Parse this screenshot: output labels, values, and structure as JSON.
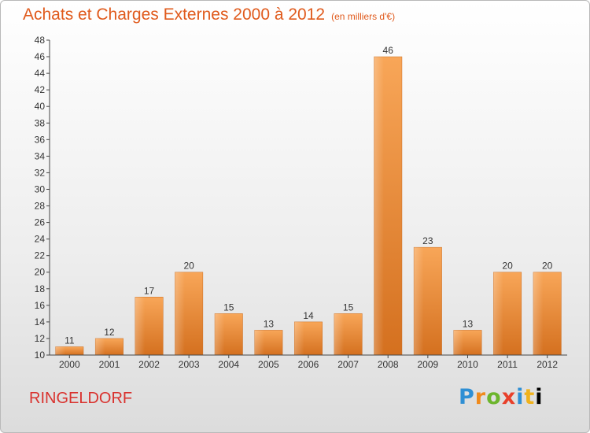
{
  "header": {
    "title": "Achats et Charges Externes 2000 à 2012",
    "subtitle": "(en milliers d'€)"
  },
  "footer": {
    "commune": "RINGELDORF",
    "logo_letters": [
      "P",
      "r",
      "o",
      "x",
      "i",
      "t",
      "i"
    ]
  },
  "colors": {
    "title": "#e05a1c",
    "bar_light": "#f8a658",
    "bar_dark": "#d4701f",
    "commune": "#d9322e"
  },
  "chart_data": {
    "type": "bar",
    "title": "Achats et Charges Externes 2000 à 2012",
    "subtitle": "(en milliers d'€)",
    "categories": [
      "2000",
      "2001",
      "2002",
      "2003",
      "2004",
      "2005",
      "2006",
      "2007",
      "2008",
      "2009",
      "2010",
      "2011",
      "2012"
    ],
    "values": [
      11,
      12,
      17,
      20,
      15,
      13,
      14,
      15,
      46,
      23,
      13,
      20,
      20
    ],
    "ylim": [
      10,
      48
    ],
    "yticks": [
      10,
      12,
      14,
      16,
      18,
      20,
      22,
      24,
      26,
      28,
      30,
      32,
      34,
      36,
      38,
      40,
      42,
      44,
      46,
      48
    ],
    "ytick_labels": [
      "10",
      "12",
      "14",
      "16",
      "18",
      "20",
      "22",
      "24",
      "26",
      "28",
      "30",
      "32",
      "34",
      "36",
      "38",
      "40",
      "42",
      "44",
      "46",
      "48"
    ],
    "grid": false,
    "legend": "none"
  }
}
